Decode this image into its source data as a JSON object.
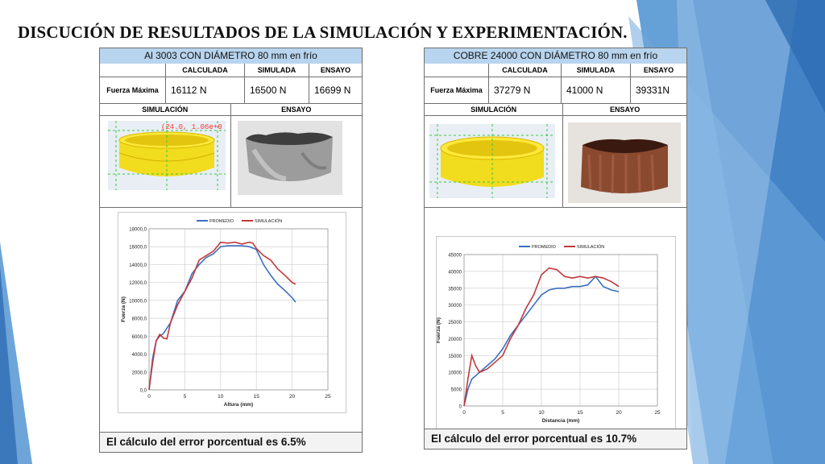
{
  "slide": {
    "title": "DISCUCIÓN  DE RESULTADOS DE LA SIMULACIÓN Y EXPERIMENTACIÓN.",
    "colors": {
      "accent_blue": "#4a8fd0",
      "light_blue": "#b8d4ee",
      "promedio": "#3a6fc0",
      "simulacion": "#c0393b"
    }
  },
  "panels": [
    {
      "title": "Al 3003 CON DIÁMETRO 80 mm en frío",
      "headers": {
        "calculada": "CALCULADA",
        "simulada": "SIMULADA",
        "ensayo": "ENSAYO"
      },
      "row_label": "Fuerza Máxima",
      "values": {
        "calculada": "16112  N",
        "simulada": "16500 N",
        "ensayo": "16699 N"
      },
      "sections": {
        "simulacion": "SIMULACIÓN",
        "ensayo": "ENSAYO"
      },
      "sim_image_label": "(24.0, 1.06e+0",
      "error_text": "El cálculo del error porcentual es 6.5%"
    },
    {
      "title": "COBRE 24000 CON DIÁMETRO 80 mm en frío",
      "headers": {
        "calculada": "CALCULADA",
        "simulada": "SIMULADA",
        "ensayo": "ENSAYO"
      },
      "row_label": "Fuerza Máxima",
      "values": {
        "calculada": "37279 N",
        "simulada": "41000 N",
        "ensayo": "39331N"
      },
      "sections": {
        "simulacion": "SIMULACIÓN",
        "ensayo": "ENSAYO"
      },
      "sim_image_label": "",
      "error_text": "El cálculo del error porcentual es 10.7%"
    }
  ],
  "chart_data": [
    {
      "type": "line",
      "xlabel": "Altura (mm)",
      "ylabel": "Fuerza (N)",
      "xlim": [
        0,
        25
      ],
      "ylim": [
        0,
        18000
      ],
      "xticks": [
        0,
        5,
        10,
        15,
        20,
        25
      ],
      "yticks": [
        0,
        2000,
        4000,
        6000,
        8000,
        10000,
        12000,
        14000,
        16000,
        18000
      ],
      "ytick_labels": [
        "0,0",
        "2000,0",
        "4000,0",
        "6000,0",
        "8000,0",
        "10000,0",
        "12000,0",
        "14000,0",
        "16000,0",
        "18000,0"
      ],
      "grid": true,
      "legend": "top",
      "series": [
        {
          "name": "PROMEDIO",
          "color": "#3a6fc0",
          "x": [
            0,
            0.5,
            1,
            1.5,
            2,
            3,
            4,
            5,
            6,
            7,
            8,
            9,
            10,
            11,
            12,
            13,
            14,
            15,
            16,
            17,
            18,
            19,
            20,
            20.5
          ],
          "y": [
            0,
            3500,
            5500,
            6000,
            6300,
            7500,
            10000,
            11000,
            13000,
            14000,
            14800,
            15200,
            16000,
            16100,
            16100,
            16100,
            16000,
            15700,
            14000,
            12800,
            11800,
            11100,
            10300,
            9800
          ]
        },
        {
          "name": "SIMULACIÓN",
          "color": "#c0393b",
          "x": [
            0,
            0.5,
            1,
            1.5,
            2,
            2.5,
            3,
            4,
            5,
            6,
            7,
            8,
            9,
            10,
            11,
            12,
            13,
            14,
            14.5,
            15,
            16,
            17,
            18,
            19,
            20,
            20.5
          ],
          "y": [
            0,
            3000,
            5500,
            6200,
            5800,
            5700,
            7500,
            9500,
            11000,
            12500,
            14500,
            15000,
            15500,
            16500,
            16400,
            16500,
            16300,
            16500,
            16400,
            15800,
            15000,
            14500,
            13500,
            12800,
            12000,
            11800
          ]
        }
      ]
    },
    {
      "type": "line",
      "xlabel": "Distancia (mm)",
      "ylabel": "Fuerza (N)",
      "xlim": [
        0,
        25
      ],
      "ylim": [
        0,
        45000
      ],
      "xticks": [
        0,
        5,
        10,
        15,
        20,
        25
      ],
      "yticks": [
        0,
        5000,
        10000,
        15000,
        20000,
        25000,
        30000,
        35000,
        40000,
        45000
      ],
      "ytick_labels": [
        "0",
        "5000",
        "10000",
        "15000",
        "20000",
        "25000",
        "30000",
        "35000",
        "40000",
        "45000"
      ],
      "grid": true,
      "legend": "top",
      "series": [
        {
          "name": "PROMEDIO",
          "color": "#3a6fc0",
          "x": [
            0,
            0.5,
            1,
            2,
            3,
            4,
            5,
            6,
            7,
            8,
            9,
            10,
            11,
            12,
            13,
            14,
            15,
            16,
            17,
            18,
            19,
            20
          ],
          "y": [
            0,
            5000,
            8000,
            10000,
            12000,
            14000,
            17000,
            21000,
            24000,
            27000,
            30000,
            33000,
            34500,
            35000,
            35000,
            35500,
            35500,
            36000,
            38500,
            35500,
            34500,
            34000
          ]
        },
        {
          "name": "SIMULACIÓN",
          "color": "#c0393b",
          "x": [
            0,
            0.5,
            1,
            1.5,
            2,
            2.5,
            3,
            4,
            5,
            6,
            7,
            8,
            9,
            10,
            11,
            12,
            13,
            14,
            15,
            16,
            17,
            18,
            19,
            20
          ],
          "y": [
            0,
            8000,
            15000,
            12000,
            10000,
            10500,
            11000,
            13000,
            15000,
            20000,
            24000,
            29000,
            33000,
            39000,
            41000,
            40500,
            38500,
            38000,
            38500,
            38000,
            38500,
            38000,
            37000,
            35500
          ]
        }
      ]
    }
  ]
}
